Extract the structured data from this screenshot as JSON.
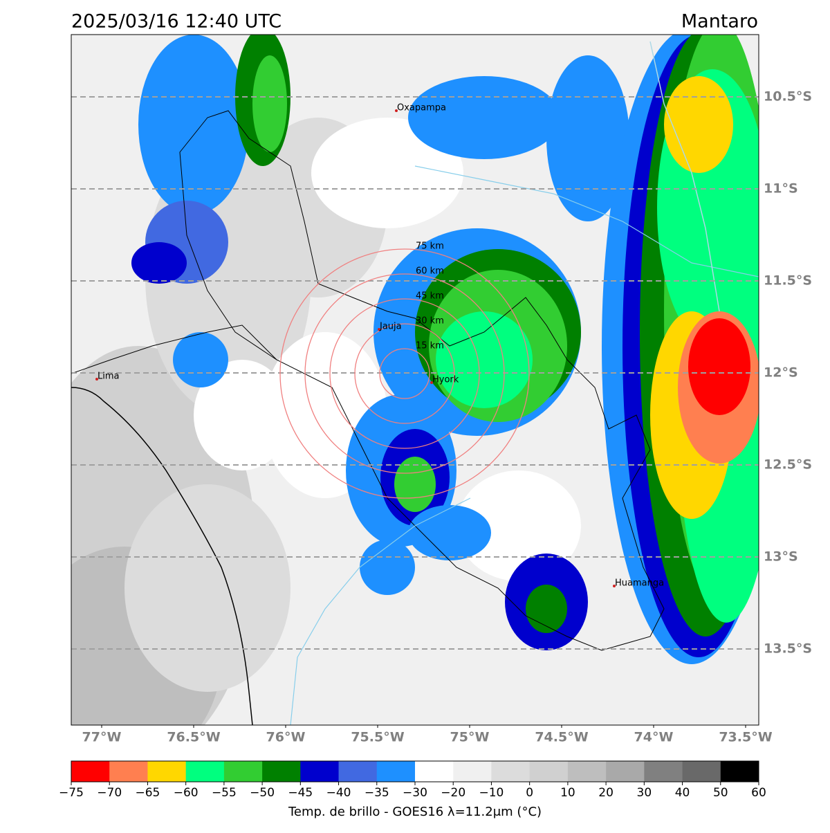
{
  "title": "2025/03/16 12:40 UTC",
  "region": "Mantaro",
  "lat_ticks": [
    {
      "value": -10.5,
      "label": "10.5°S"
    },
    {
      "value": -11,
      "label": "11°S"
    },
    {
      "value": -11.5,
      "label": "11.5°S"
    },
    {
      "value": -12,
      "label": "12°S"
    },
    {
      "value": -12.5,
      "label": "12.5°S"
    },
    {
      "value": -13,
      "label": "13°S"
    },
    {
      "value": -13.5,
      "label": "13.5°S"
    }
  ],
  "lon_ticks": [
    {
      "value": -77,
      "label": "77°W"
    },
    {
      "value": -76.5,
      "label": "76.5°W"
    },
    {
      "value": -76,
      "label": "76°W"
    },
    {
      "value": -75.5,
      "label": "75.5°W"
    },
    {
      "value": -75,
      "label": "75°W"
    },
    {
      "value": -74.5,
      "label": "74.5°W"
    },
    {
      "value": -74,
      "label": "74°W"
    },
    {
      "value": -73.5,
      "label": "73.5°W"
    }
  ],
  "cities": [
    "Oxapampa",
    "Jauja",
    "Hyork",
    "Lima",
    "Huamanga"
  ],
  "range_rings_km": [
    {
      "value": 15,
      "label": "15 km"
    },
    {
      "value": 30,
      "label": "30 km"
    },
    {
      "value": 45,
      "label": "45 km"
    },
    {
      "value": 60,
      "label": "60 km"
    },
    {
      "value": 75,
      "label": "75 km"
    }
  ],
  "colorbar": {
    "label": "Temp. de brillo - GOES16 λ=11.2μm (°C)",
    "ticks": [
      {
        "value": -75,
        "label": "−75"
      },
      {
        "value": -70,
        "label": "−70"
      },
      {
        "value": -65,
        "label": "−65"
      },
      {
        "value": -60,
        "label": "−60"
      },
      {
        "value": -55,
        "label": "−55"
      },
      {
        "value": -50,
        "label": "−50"
      },
      {
        "value": -45,
        "label": "−45"
      },
      {
        "value": -40,
        "label": "−40"
      },
      {
        "value": -35,
        "label": "−35"
      },
      {
        "value": -30,
        "label": "−30"
      },
      {
        "value": -20,
        "label": "−20"
      },
      {
        "value": -10,
        "label": "−10"
      },
      0,
      10,
      20,
      30,
      40,
      50,
      60
    ],
    "colors": [
      "#ff0000",
      "#ff7f50",
      "#ffd700",
      "#00ff7f",
      "#32cd32",
      "#008000",
      "#0000cd",
      "#4169e1",
      "#1e90ff",
      "#ffffff",
      "#f0f0f0",
      "#dcdcdc",
      "#d0d0d0",
      "#bebebe",
      "#a9a9a9",
      "#808080",
      "#696969",
      "#000000"
    ]
  }
}
